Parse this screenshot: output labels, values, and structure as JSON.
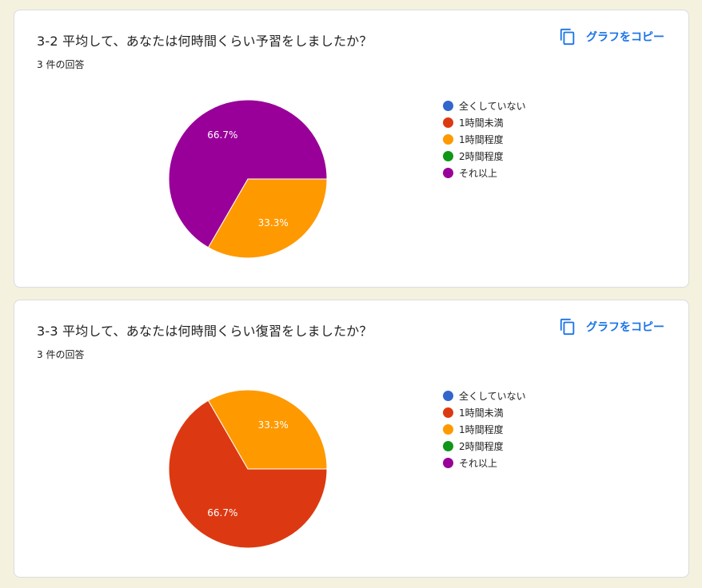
{
  "colors": {
    "page_background": "#f4f1df",
    "card_background": "#ffffff",
    "accent": "#1a73e8"
  },
  "copy_label": "グラフをコピー",
  "legend_categories": [
    {
      "label": "全くしていない",
      "color": "#3366cc"
    },
    {
      "label": "1時間未満",
      "color": "#dc3912"
    },
    {
      "label": "1時間程度",
      "color": "#ff9900"
    },
    {
      "label": "2時間程度",
      "color": "#109618"
    },
    {
      "label": "それ以上",
      "color": "#990099"
    }
  ],
  "cards": [
    {
      "title": "3-2 平均して、あなたは何時間くらい予習をしましたか？",
      "response_count": "3 件の回答"
    },
    {
      "title": "3-3 平均して、あなたは何時間くらい復習をしましたか？",
      "response_count": "3 件の回答"
    }
  ],
  "chart_data": [
    {
      "type": "pie",
      "title": "3-2 平均して、あなたは何時間くらい予習をしましたか？",
      "categories": [
        "全くしていない",
        "1時間未満",
        "1時間程度",
        "2時間程度",
        "それ以上"
      ],
      "values": [
        0,
        0,
        1,
        0,
        2
      ],
      "slice_labels": [
        "",
        "",
        "33.3%",
        "",
        "66.7%"
      ],
      "colors": [
        "#3366cc",
        "#dc3912",
        "#ff9900",
        "#109618",
        "#990099"
      ],
      "legend_position": "right"
    },
    {
      "type": "pie",
      "title": "3-3 平均して、あなたは何時間くらい復習をしましたか？",
      "categories": [
        "全くしていない",
        "1時間未満",
        "1時間程度",
        "2時間程度",
        "それ以上"
      ],
      "values": [
        0,
        2,
        1,
        0,
        0
      ],
      "slice_labels": [
        "",
        "66.7%",
        "33.3%",
        "",
        ""
      ],
      "colors": [
        "#3366cc",
        "#dc3912",
        "#ff9900",
        "#109618",
        "#990099"
      ],
      "legend_position": "right"
    }
  ]
}
